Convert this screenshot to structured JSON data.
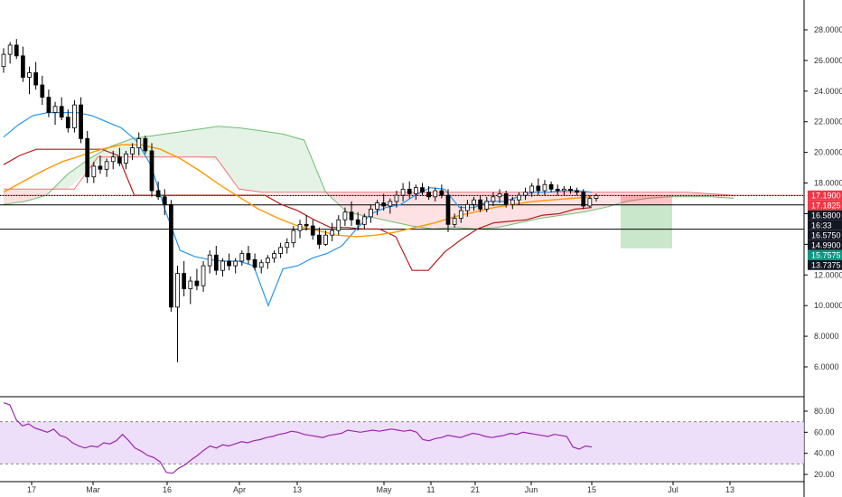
{
  "chart_data": [
    {
      "type": "candlestick",
      "title": "",
      "y_ticks": [
        "28.0000",
        "26.0000",
        "24.0000",
        "22.0000",
        "20.0000",
        "18.0000",
        "16.0000",
        "14.0000",
        "12.0000",
        "10.0000",
        "8.0000",
        "6.0000"
      ],
      "ylim": [
        5.2,
        29.0
      ],
      "x_ticks": [
        "17",
        "Mar",
        "16",
        "Apr",
        "13",
        "May",
        "11",
        "21",
        "Jun",
        "15",
        "Jul",
        "13"
      ],
      "candles": [
        [
          25.6,
          26.8,
          25.2,
          26.4
        ],
        [
          26.4,
          27.2,
          25.8,
          27.0
        ],
        [
          27.0,
          27.4,
          26.1,
          26.3
        ],
        [
          26.3,
          26.9,
          24.6,
          24.9
        ],
        [
          24.9,
          25.6,
          23.8,
          25.2
        ],
        [
          25.2,
          25.9,
          24.1,
          24.4
        ],
        [
          24.4,
          25.0,
          23.1,
          23.6
        ],
        [
          23.6,
          24.1,
          22.3,
          22.6
        ],
        [
          22.6,
          23.3,
          21.8,
          23.0
        ],
        [
          23.0,
          23.6,
          22.1,
          22.3
        ],
        [
          22.3,
          22.8,
          21.3,
          21.6
        ],
        [
          21.6,
          23.4,
          21.3,
          23.1
        ],
        [
          23.1,
          23.6,
          20.6,
          20.9
        ],
        [
          20.9,
          21.4,
          18.0,
          18.4
        ],
        [
          18.4,
          19.4,
          18.0,
          19.1
        ],
        [
          19.1,
          19.8,
          18.6,
          18.9
        ],
        [
          18.9,
          19.6,
          18.4,
          19.4
        ],
        [
          19.4,
          20.1,
          18.9,
          19.7
        ],
        [
          19.7,
          20.3,
          19.1,
          19.3
        ],
        [
          19.3,
          20.1,
          18.9,
          19.9
        ],
        [
          19.9,
          20.6,
          19.5,
          20.3
        ],
        [
          20.3,
          21.3,
          19.8,
          20.9
        ],
        [
          20.9,
          21.1,
          19.9,
          20.1
        ],
        [
          20.1,
          20.6,
          17.1,
          17.5
        ],
        [
          17.5,
          18.1,
          16.9,
          17.1
        ],
        [
          17.1,
          17.6,
          15.9,
          16.6
        ],
        [
          16.6,
          16.9,
          9.6,
          9.9
        ],
        [
          9.9,
          12.6,
          6.3,
          12.1
        ],
        [
          12.1,
          12.9,
          10.6,
          11.1
        ],
        [
          11.1,
          11.9,
          10.1,
          11.6
        ],
        [
          11.6,
          12.4,
          11.0,
          11.3
        ],
        [
          11.3,
          12.9,
          10.9,
          12.6
        ],
        [
          12.6,
          13.6,
          12.1,
          13.3
        ],
        [
          13.3,
          13.9,
          12.0,
          12.3
        ],
        [
          12.3,
          13.1,
          11.9,
          12.9
        ],
        [
          12.9,
          13.4,
          12.3,
          12.6
        ],
        [
          12.6,
          13.1,
          12.1,
          12.9
        ],
        [
          12.9,
          13.6,
          12.6,
          13.4
        ],
        [
          13.4,
          13.9,
          12.7,
          13.0
        ],
        [
          13.0,
          13.4,
          12.3,
          12.5
        ],
        [
          12.5,
          13.0,
          12.1,
          12.8
        ],
        [
          12.8,
          13.3,
          12.4,
          13.1
        ],
        [
          13.1,
          13.6,
          12.8,
          13.4
        ],
        [
          13.4,
          14.1,
          13.1,
          13.8
        ],
        [
          13.8,
          14.4,
          13.4,
          14.1
        ],
        [
          14.1,
          15.2,
          13.8,
          14.9
        ],
        [
          14.9,
          15.6,
          14.4,
          15.3
        ],
        [
          15.3,
          15.9,
          14.9,
          15.2
        ],
        [
          15.2,
          15.6,
          14.3,
          14.6
        ],
        [
          14.6,
          15.1,
          13.7,
          14.0
        ],
        [
          14.0,
          14.9,
          13.9,
          14.6
        ],
        [
          14.6,
          15.4,
          14.2,
          14.9
        ],
        [
          14.9,
          15.9,
          14.6,
          15.6
        ],
        [
          15.6,
          16.4,
          15.2,
          16.1
        ],
        [
          16.1,
          16.8,
          15.2,
          15.6
        ],
        [
          15.6,
          16.1,
          14.9,
          15.3
        ],
        [
          15.3,
          16.0,
          15.0,
          15.8
        ],
        [
          15.8,
          16.6,
          15.4,
          16.3
        ],
        [
          16.3,
          16.9,
          15.9,
          16.7
        ],
        [
          16.7,
          17.3,
          16.2,
          16.5
        ],
        [
          16.5,
          17.0,
          16.0,
          16.8
        ],
        [
          16.8,
          17.5,
          16.4,
          17.2
        ],
        [
          17.2,
          18.0,
          16.8,
          17.6
        ],
        [
          17.6,
          18.1,
          17.0,
          17.3
        ],
        [
          17.3,
          17.9,
          16.9,
          17.7
        ],
        [
          17.7,
          18.0,
          17.2,
          17.4
        ],
        [
          17.4,
          17.8,
          16.9,
          17.1
        ],
        [
          17.1,
          17.7,
          16.8,
          17.5
        ],
        [
          17.5,
          17.9,
          17.0,
          17.2
        ],
        [
          17.2,
          17.6,
          14.8,
          15.3
        ],
        [
          15.3,
          16.0,
          15.1,
          15.7
        ],
        [
          15.7,
          16.5,
          15.4,
          16.2
        ],
        [
          16.2,
          16.9,
          15.8,
          16.6
        ],
        [
          16.6,
          17.1,
          16.2,
          16.9
        ],
        [
          16.9,
          17.2,
          16.1,
          16.3
        ],
        [
          16.3,
          17.1,
          16.1,
          16.8
        ],
        [
          16.8,
          17.4,
          16.5,
          17.1
        ],
        [
          17.1,
          17.6,
          16.7,
          17.3
        ],
        [
          17.3,
          17.5,
          16.4,
          16.6
        ],
        [
          16.6,
          17.1,
          16.3,
          16.9
        ],
        [
          16.9,
          17.4,
          16.6,
          17.2
        ],
        [
          17.2,
          17.7,
          16.9,
          17.4
        ],
        [
          17.4,
          18.0,
          17.1,
          17.8
        ],
        [
          17.8,
          18.3,
          17.2,
          17.5
        ],
        [
          17.5,
          18.2,
          17.2,
          17.9
        ],
        [
          17.9,
          18.1,
          17.4,
          17.6
        ],
        [
          17.6,
          17.9,
          17.2,
          17.5
        ],
        [
          17.5,
          17.8,
          17.2,
          17.6
        ],
        [
          17.6,
          17.8,
          17.3,
          17.5
        ],
        [
          17.5,
          17.7,
          17.2,
          17.4
        ],
        [
          17.4,
          17.6,
          16.3,
          16.5
        ],
        [
          16.5,
          17.2,
          16.4,
          17.0
        ],
        [
          17.0,
          17.3,
          16.8,
          17.18
        ]
      ],
      "conversion_line_tenkan": [
        21.0,
        21.8,
        22.4,
        22.6,
        22.6,
        22.6,
        22.4,
        22.0,
        21.6,
        20.8,
        19.2,
        16.2,
        13.6,
        13.2,
        13.0,
        12.9,
        12.9,
        12.6,
        10.0,
        12.4,
        12.6,
        13.1,
        13.4,
        13.9,
        15.0,
        16.0,
        16.4,
        16.6,
        17.2,
        17.7,
        17.6,
        16.4,
        16.4,
        16.8,
        16.8,
        17.1,
        17.4,
        17.4,
        17.5,
        17.5,
        17.4
      ],
      "base_line_kijun": [
        19.2,
        19.8,
        20.2,
        20.2,
        20.2,
        20.2,
        20.2,
        19.8,
        17.2,
        17.2,
        17.2,
        17.2,
        17.2,
        17.2,
        17.2,
        17.2,
        17.2,
        16.6,
        16.2,
        15.6,
        15.1,
        15.1,
        15.0,
        15.0,
        14.5,
        12.3,
        12.3,
        13.5,
        14.3,
        15.0,
        15.4,
        15.5,
        15.6,
        15.9,
        16.0,
        16.3,
        16.4
      ],
      "moving_average": [
        17.4,
        18.1,
        18.8,
        19.4,
        19.8,
        20.2,
        20.5,
        20.5,
        20.2,
        19.6,
        18.8,
        17.9,
        17.1,
        16.3,
        15.7,
        15.2,
        14.9,
        14.6,
        14.5,
        14.6,
        14.8,
        15.1,
        15.4,
        15.8,
        16.1,
        16.4,
        16.6,
        16.8,
        16.9,
        17.0,
        17.1
      ],
      "cloud_span_a": [
        16.6,
        16.8,
        17.2,
        18.6,
        19.6,
        20.4,
        20.9,
        21.1,
        21.3,
        21.5,
        21.7,
        21.6,
        21.4,
        21.2,
        20.8,
        17.4,
        16.1,
        15.8,
        15.5,
        15.2,
        15.0,
        15.1,
        15.0,
        15.1,
        15.4,
        15.7,
        15.9,
        16.1,
        16.4,
        16.8,
        17.0,
        17.1,
        17.1,
        17.1,
        17.0
      ],
      "cloud_span_b": [
        17.6,
        17.6,
        17.6,
        17.6,
        19.7,
        19.7,
        19.7,
        19.7,
        19.7,
        19.7,
        17.6,
        17.4,
        17.4,
        17.4,
        17.4,
        17.4,
        17.4,
        17.4,
        17.4,
        17.4,
        17.4,
        17.4,
        17.4,
        17.4,
        17.4,
        17.4,
        17.4,
        17.4,
        17.4,
        17.4,
        17.3,
        17.2
      ],
      "price_labels": [
        {
          "text": "17.1900",
          "color": "#f23645"
        },
        {
          "text": "17.1825",
          "color": "#f23645"
        },
        {
          "text": "16.5800",
          "color": "#131722"
        },
        {
          "text": "16:33",
          "color": "#131722"
        },
        {
          "text": "16.5750",
          "color": "#131722"
        },
        {
          "text": "14.9900",
          "color": "#131722"
        },
        {
          "text": "15.7575",
          "color": "#089981"
        },
        {
          "text": "13.7375",
          "color": "#131722"
        }
      ],
      "horizontal_levels": [
        17.19,
        16.575,
        14.99
      ],
      "position_tool": {
        "entry": 16.575,
        "stop": 17.19,
        "target": 13.7375,
        "profit_color": "#4caf50",
        "loss_color": "#f23645"
      },
      "grid": false,
      "colors": {
        "up": "#ffffff",
        "down": "#000000",
        "tenkan": "#2196f3",
        "kijun": "#b71c1c",
        "ma": "#ff9800",
        "cloud_bull": "#4caf50",
        "cloud_bear": "#f23645"
      }
    },
    {
      "type": "line",
      "indicator": "RSI",
      "y_ticks": [
        "80.00",
        "60.00",
        "40.00",
        "20.00"
      ],
      "ylim": [
        14,
        90
      ],
      "band": [
        30,
        70
      ],
      "values": [
        88,
        86,
        72,
        66,
        68,
        64,
        62,
        60,
        63,
        57,
        55,
        50,
        47,
        45,
        47,
        46,
        50,
        49,
        52,
        58,
        52,
        45,
        42,
        38,
        36,
        32,
        22,
        21,
        26,
        29,
        34,
        38,
        43,
        47,
        45,
        48,
        47,
        49,
        51,
        50,
        52,
        53,
        55,
        56,
        58,
        59,
        61,
        60,
        58,
        57,
        56,
        55,
        57,
        58,
        59,
        62,
        61,
        60,
        61,
        62,
        61,
        62,
        63,
        62,
        61,
        62,
        60,
        53,
        52,
        54,
        55,
        57,
        56,
        55,
        57,
        59,
        58,
        56,
        55,
        56,
        57,
        59,
        58,
        60,
        59,
        58,
        57,
        56,
        58,
        57,
        56,
        46,
        44,
        47,
        46
      ],
      "colors": {
        "line": "#9c27b0",
        "band": "#e9d6f7"
      }
    }
  ]
}
